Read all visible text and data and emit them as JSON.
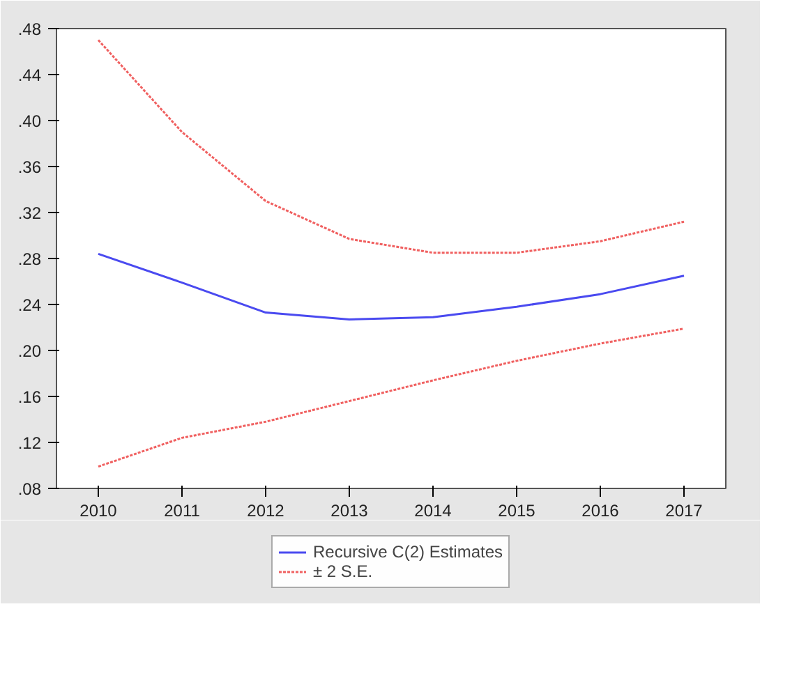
{
  "chart_data": {
    "type": "line",
    "categories": [
      "2010",
      "2011",
      "2012",
      "2013",
      "2014",
      "2015",
      "2016",
      "2017"
    ],
    "series": [
      {
        "name": "Recursive C(2) Estimates",
        "color": "#4a4af0",
        "line_style": "solid",
        "values": [
          0.284,
          0.259,
          0.233,
          0.227,
          0.229,
          0.238,
          0.249,
          0.265
        ]
      },
      {
        "name": "± 2 S.E.",
        "color": "#f06060",
        "line_style": "dotted",
        "values": [
          0.47,
          0.39,
          0.33,
          0.297,
          0.285,
          0.285,
          0.295,
          0.312
        ]
      },
      {
        "color": "#f06060",
        "line_style": "dotted",
        "values": [
          0.099,
          0.124,
          0.138,
          0.156,
          0.174,
          0.191,
          0.206,
          0.219
        ]
      }
    ],
    "ylim": [
      0.08,
      0.48
    ],
    "yticks": [
      {
        "value": 0.08,
        "label": ".08"
      },
      {
        "value": 0.12,
        "label": ".12"
      },
      {
        "value": 0.16,
        "label": ".16"
      },
      {
        "value": 0.2,
        "label": ".20"
      },
      {
        "value": 0.24,
        "label": ".24"
      },
      {
        "value": 0.28,
        "label": ".28"
      },
      {
        "value": 0.32,
        "label": ".32"
      },
      {
        "value": 0.36,
        "label": ".36"
      },
      {
        "value": 0.4,
        "label": ".40"
      },
      {
        "value": 0.44,
        "label": ".44"
      },
      {
        "value": 0.48,
        "label": ".48"
      }
    ],
    "grid": false,
    "legend": "bottom",
    "marker": "none"
  }
}
